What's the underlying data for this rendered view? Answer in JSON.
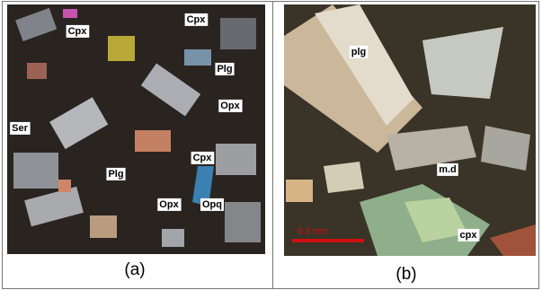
{
  "panels": [
    {
      "labels": [
        "Cpx",
        "Cpx",
        "Plg",
        "Opx",
        "Ser",
        "Plg",
        "Cpx",
        "Opx",
        "Opq"
      ],
      "caption": "(a)"
    },
    {
      "labels": [
        "plg",
        "m.d",
        "cpx"
      ],
      "scale_bar": "0.5 mm",
      "caption": "(b)"
    }
  ]
}
